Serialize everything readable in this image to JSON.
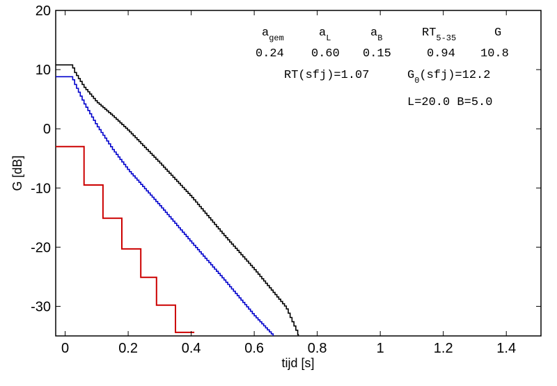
{
  "chart_data": {
    "type": "line",
    "title": "",
    "xlabel": "tijd  [s]",
    "ylabel": "G  [dB]",
    "xlim": [
      -0.03,
      1.51
    ],
    "ylim": [
      -35,
      20
    ],
    "grid": false,
    "x_ticks": [
      {
        "value": 0,
        "label": "0"
      },
      {
        "value": 0.2,
        "label": "0.2"
      },
      {
        "value": 0.4,
        "label": "0.4"
      },
      {
        "value": 0.6,
        "label": "0.6"
      },
      {
        "value": 0.8,
        "label": "0.8"
      },
      {
        "value": 1.0,
        "label": "1"
      },
      {
        "value": 1.2,
        "label": "1.2"
      },
      {
        "value": 1.4,
        "label": "1.4"
      }
    ],
    "y_ticks": [
      {
        "value": 20,
        "label": "20"
      },
      {
        "value": 10,
        "label": "10"
      },
      {
        "value": 0,
        "label": "0"
      },
      {
        "value": -10,
        "label": "-10"
      },
      {
        "value": -20,
        "label": "-20"
      },
      {
        "value": -30,
        "label": "-30"
      }
    ],
    "series": [
      {
        "color": "#000000",
        "style": "fine-staircase",
        "x": [
          -0.03,
          0.02,
          0.03,
          0.06,
          0.1,
          0.15,
          0.2,
          0.3,
          0.4,
          0.5,
          0.6,
          0.7,
          0.74
        ],
        "y": [
          10.8,
          10.8,
          9.5,
          7.0,
          4.5,
          2.2,
          -0.3,
          -5.8,
          -11.5,
          -17.8,
          -23.8,
          -30.2,
          -35
        ]
      },
      {
        "color": "#0000cc",
        "style": "fine-staircase",
        "x": [
          -0.03,
          0.02,
          0.03,
          0.06,
          0.1,
          0.15,
          0.2,
          0.3,
          0.4,
          0.5,
          0.6,
          0.66
        ],
        "y": [
          8.8,
          8.8,
          7.5,
          4.2,
          0.5,
          -3.5,
          -7.0,
          -13.0,
          -19.2,
          -25.3,
          -31.6,
          -35
        ]
      },
      {
        "color": "#cc0000",
        "style": "staircase",
        "x": [
          -0.03,
          0.06,
          0.06,
          0.12,
          0.12,
          0.18,
          0.18,
          0.24,
          0.24,
          0.29,
          0.29,
          0.35,
          0.35,
          0.41
        ],
        "y": [
          -3.0,
          -3.0,
          -9.5,
          -9.5,
          -15.1,
          -15.1,
          -20.3,
          -20.3,
          -25.1,
          -25.1,
          -29.8,
          -29.8,
          -34.4,
          -34.4
        ]
      }
    ],
    "annotation": {
      "header": [
        {
          "main": "a",
          "sub": "gem"
        },
        {
          "main": "a",
          "sub": "L"
        },
        {
          "main": "a",
          "sub": "B"
        },
        {
          "main": "RT",
          "sub": "5-35"
        },
        {
          "main": "G",
          "sub": ""
        }
      ],
      "values": [
        "0.24",
        "0.60",
        "0.15",
        "0.94",
        "10.8"
      ],
      "rt_sfj": "RT(sfj)=1.07",
      "g0_main": "G",
      "g0_sub": "0",
      "g0_rest": "(sfj)=12.2",
      "dims": "L=20.0 B=5.0"
    }
  }
}
